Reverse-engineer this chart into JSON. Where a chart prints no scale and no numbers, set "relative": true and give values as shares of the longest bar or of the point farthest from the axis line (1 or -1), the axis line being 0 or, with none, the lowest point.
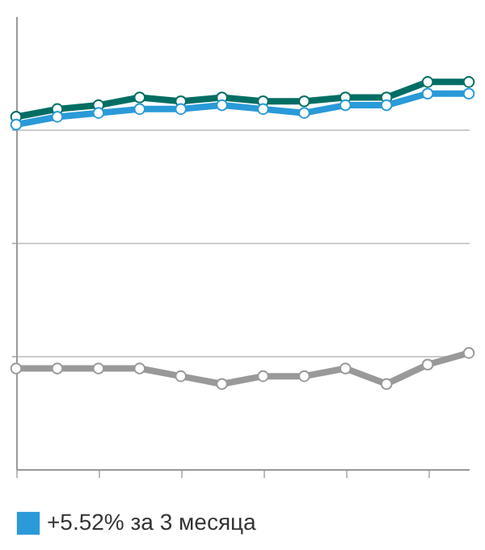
{
  "chart_data": {
    "type": "line",
    "relative": true,
    "categories": [
      null,
      null,
      null,
      null,
      null,
      null,
      null,
      null,
      null,
      null,
      null,
      null
    ],
    "series": [
      {
        "color": "#006e63",
        "values": [
          0.91,
          0.93,
          0.94,
          0.96,
          0.95,
          0.96,
          0.95,
          0.95,
          0.96,
          0.96,
          1,
          1
        ]
      },
      {
        "name": "+5.52% за 3 месяца",
        "color": "#2a9ad8",
        "values": [
          0.89,
          0.91,
          0.92,
          0.93,
          0.93,
          0.94,
          0.93,
          0.92,
          0.94,
          0.94,
          0.97,
          0.97
        ]
      },
      {
        "color": "#999999",
        "values": [
          0.26,
          0.26,
          0.26,
          0.26,
          0.24,
          0.22,
          0.24,
          0.24,
          0.26,
          0.22,
          0.27,
          0.3
        ]
      }
    ],
    "grid": "y",
    "legend": "bottom",
    "marker": "circle",
    "line_style": "solid"
  }
}
